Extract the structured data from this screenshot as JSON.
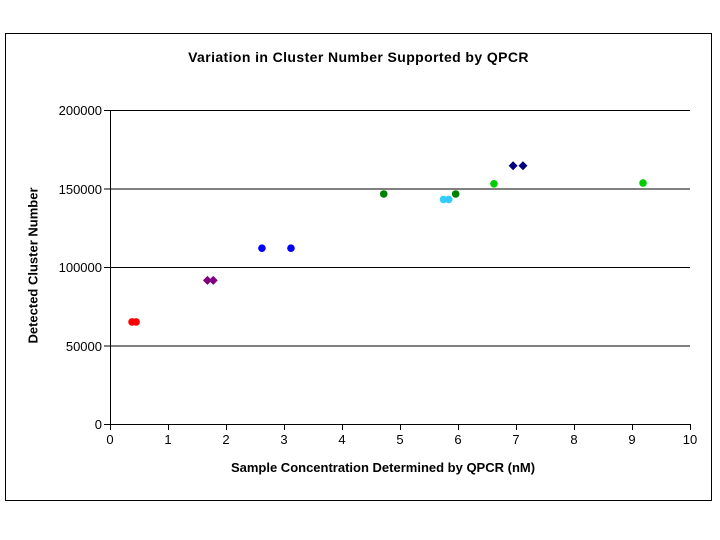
{
  "window": {
    "background_color": "#FFFFFF",
    "border_color": "#000000"
  },
  "chart_data": {
    "type": "scatter",
    "title": "Variation in Cluster Number Supported by QPCR",
    "xlabel": "Sample Concentration Determined by QPCR (nM)",
    "ylabel": "Detected Cluster Number",
    "xlim": [
      0,
      10
    ],
    "ylim": [
      0,
      200000
    ],
    "x_ticks": [
      0,
      1,
      2,
      3,
      4,
      5,
      6,
      7,
      8,
      9,
      10
    ],
    "y_ticks": [
      0,
      50000,
      100000,
      150000,
      200000
    ],
    "grid": "horizontal",
    "legend": "none",
    "gridline_color": "#000000",
    "axis_color": "#000000",
    "series": [
      {
        "name": "red",
        "color": "#FF0000",
        "marker": "circle",
        "points": [
          [
            0.38,
            65000
          ],
          [
            0.45,
            65000
          ]
        ]
      },
      {
        "name": "purple",
        "color": "#800080",
        "marker": "diamond",
        "points": [
          [
            1.68,
            91500
          ],
          [
            1.78,
            91500
          ]
        ]
      },
      {
        "name": "blue",
        "color": "#0000FF",
        "marker": "circle",
        "points": [
          [
            2.62,
            112000
          ],
          [
            3.12,
            112000
          ]
        ]
      },
      {
        "name": "dark-green",
        "color": "#008000",
        "marker": "circle",
        "points": [
          [
            4.72,
            146500
          ],
          [
            5.96,
            146500
          ]
        ]
      },
      {
        "name": "cyan",
        "color": "#33CCFF",
        "marker": "circle",
        "points": [
          [
            5.75,
            143000
          ],
          [
            5.84,
            143000
          ]
        ]
      },
      {
        "name": "light-green",
        "color": "#00CC00",
        "marker": "circle",
        "points": [
          [
            6.62,
            153000
          ],
          [
            9.19,
            153500
          ]
        ]
      },
      {
        "name": "navy",
        "color": "#000080",
        "marker": "diamond",
        "points": [
          [
            6.95,
            164500
          ],
          [
            7.12,
            164500
          ]
        ]
      }
    ]
  }
}
